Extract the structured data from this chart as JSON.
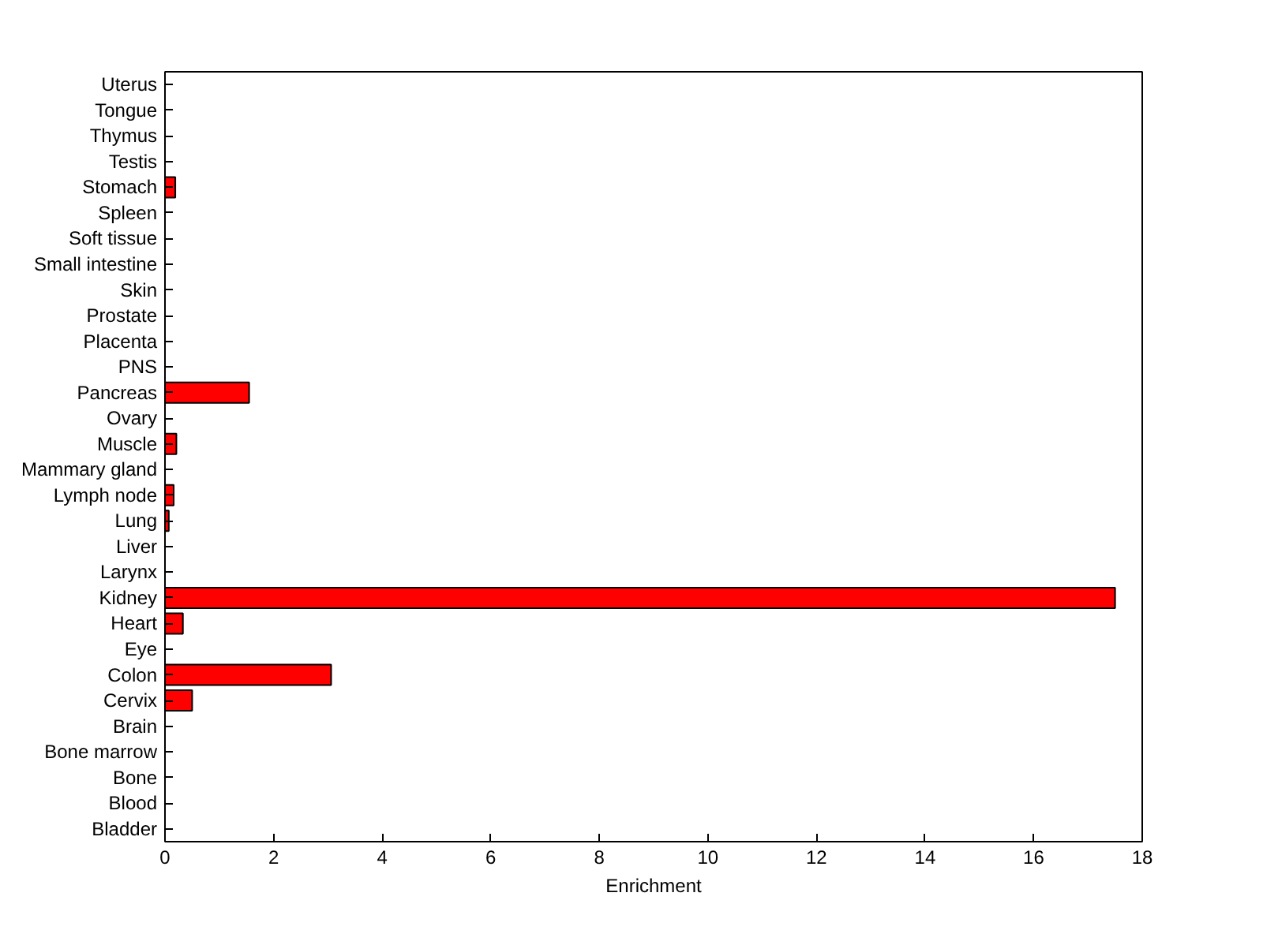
{
  "chart_data": {
    "type": "bar",
    "orientation": "horizontal",
    "xlabel": "Enrichment",
    "categories": [
      "Uterus",
      "Tongue",
      "Thymus",
      "Testis",
      "Stomach",
      "Spleen",
      "Soft tissue",
      "Small intestine",
      "Skin",
      "Prostate",
      "Placenta",
      "PNS",
      "Pancreas",
      "Ovary",
      "Muscle",
      "Mammary gland",
      "Lymph node",
      "Lung",
      "Liver",
      "Larynx",
      "Kidney",
      "Heart",
      "Eye",
      "Colon",
      "Cervix",
      "Brain",
      "Bone marrow",
      "Bone",
      "Blood",
      "Bladder"
    ],
    "values": [
      0,
      0,
      0,
      0,
      0.19,
      0,
      0,
      0,
      0,
      0,
      0,
      0,
      1.55,
      0,
      0.21,
      0,
      0.16,
      0.07,
      0,
      0,
      17.5,
      0.33,
      0,
      3.06,
      0.5,
      0,
      0,
      0,
      0,
      0
    ],
    "color": "#ff0000",
    "xlim": [
      0,
      18
    ],
    "xticks": [
      0,
      2,
      4,
      6,
      8,
      10,
      12,
      14,
      16,
      18
    ],
    "grid": false
  }
}
